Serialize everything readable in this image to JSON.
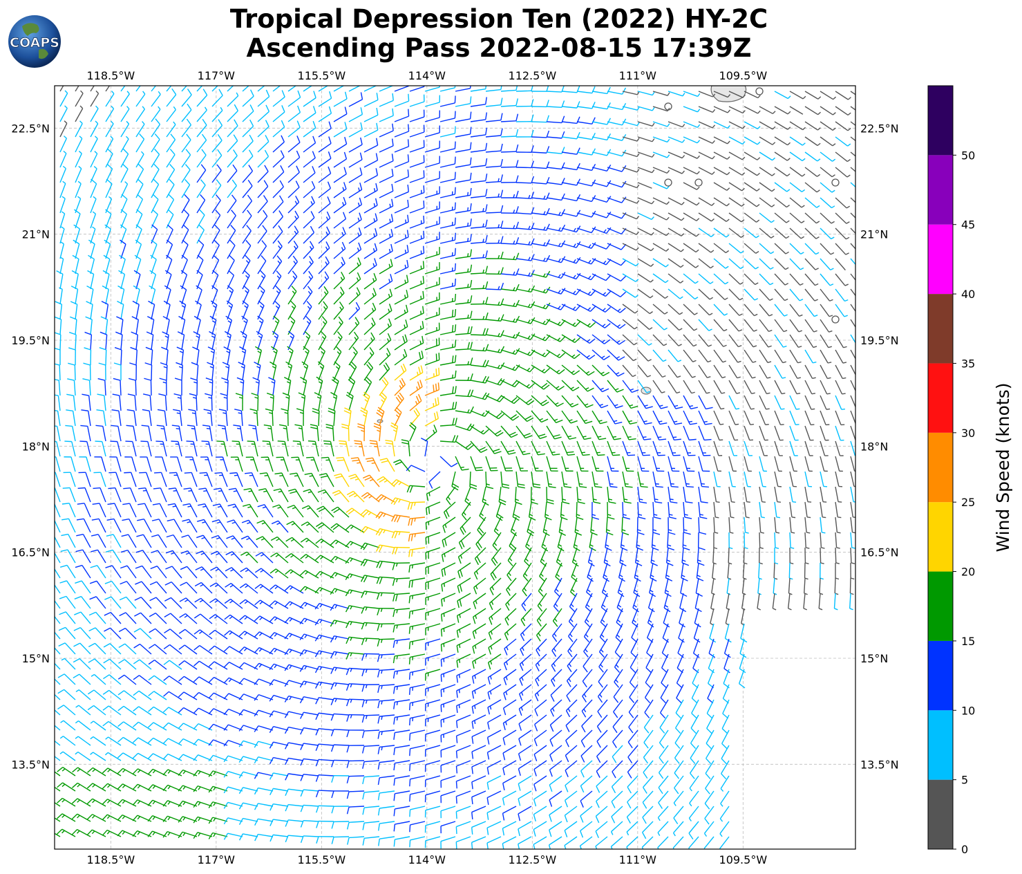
{
  "title": {
    "line1": "Tropical Depression Ten (2022) HY-2C",
    "line2": "Ascending Pass 2022-08-15 17:39Z"
  },
  "logo": {
    "text": "COAPS",
    "icon": "globe-icon"
  },
  "map": {
    "lon_range": [
      -119.3,
      -107.9
    ],
    "lat_range": [
      12.3,
      23.1
    ],
    "lon_ticks": [
      "118.5°W",
      "117°W",
      "115.5°W",
      "114°W",
      "112.5°W",
      "111°W",
      "109.5°W"
    ],
    "lon_values": [
      -118.5,
      -117,
      -115.5,
      -114,
      -112.5,
      -111,
      -109.5
    ],
    "lat_ticks": [
      "22.5°N",
      "21°N",
      "19.5°N",
      "18°N",
      "16.5°N",
      "15°N",
      "13.5°N"
    ],
    "lat_values": [
      22.5,
      21,
      19.5,
      18,
      16.5,
      15,
      13.5
    ],
    "storm_center": {
      "lon": -113.9,
      "lat": 17.8
    },
    "gridlines": true,
    "grid_style": "dashed gray"
  },
  "colorbar": {
    "label": "Wind Speed (knots)",
    "tick_labels": [
      "0",
      "5",
      "10",
      "15",
      "20",
      "25",
      "30",
      "35",
      "40",
      "45",
      "50"
    ],
    "bins": [
      {
        "min": 0,
        "max": 5,
        "color": "#555555"
      },
      {
        "min": 5,
        "max": 10,
        "color": "#00bfff"
      },
      {
        "min": 10,
        "max": 15,
        "color": "#0033ff"
      },
      {
        "min": 15,
        "max": 20,
        "color": "#009900"
      },
      {
        "min": 20,
        "max": 25,
        "color": "#ffd500"
      },
      {
        "min": 25,
        "max": 30,
        "color": "#ff8c00"
      },
      {
        "min": 30,
        "max": 35,
        "color": "#ff1111"
      },
      {
        "min": 35,
        "max": 40,
        "color": "#7f3b2a"
      },
      {
        "min": 40,
        "max": 45,
        "color": "#ff00ff"
      },
      {
        "min": 45,
        "max": 50,
        "color": "#8800bb"
      },
      {
        "min": 50,
        "max": 55,
        "color": "#2e0060"
      }
    ]
  }
}
